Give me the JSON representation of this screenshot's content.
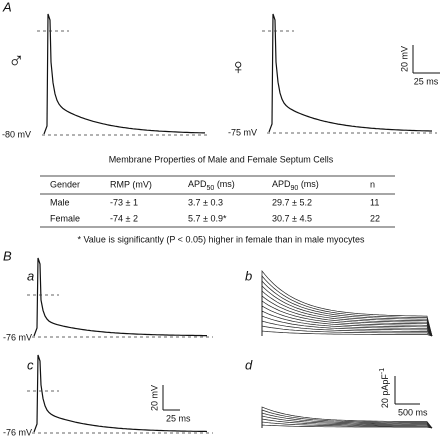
{
  "panel_a": {
    "label": "A",
    "male_symbol": "♂",
    "female_symbol": "♀",
    "male_rmp": "-80 mV",
    "female_rmp": "-75 mV",
    "scale_v": "20 mV",
    "scale_t": "25 ms"
  },
  "table": {
    "title": "Membrane Properties of Male and Female Septum Cells",
    "headers": [
      "Gender",
      "RMP (mV)",
      {
        "text": "APD",
        "sub": "50",
        "unit": " (ms)"
      },
      {
        "text": "APD",
        "sub": "90",
        "unit": " (ms)"
      },
      "n"
    ],
    "rows": [
      [
        "Male",
        "-73 ± 1",
        "3.7 ± 0.3",
        "29.7 ± 5.2",
        "11"
      ],
      [
        "Female",
        "-74 ± 2",
        "5.7 ± 0.9*",
        "30.7 ± 4.5",
        "22"
      ]
    ],
    "footnote": "* Value is significantly (P < 0.05) higher in female than in male myocytes"
  },
  "panel_b": {
    "label": "B",
    "sub_a": "a",
    "sub_b": "b",
    "sub_c": "c",
    "sub_d": "d",
    "rmp_a": "-76 mV",
    "rmp_c": "-76 mV",
    "scale_v": "20 mV",
    "scale_t": "25 ms",
    "scale_i": "20 pApF",
    "scale_i_exp": "-1",
    "scale_t2": "500 ms"
  }
}
